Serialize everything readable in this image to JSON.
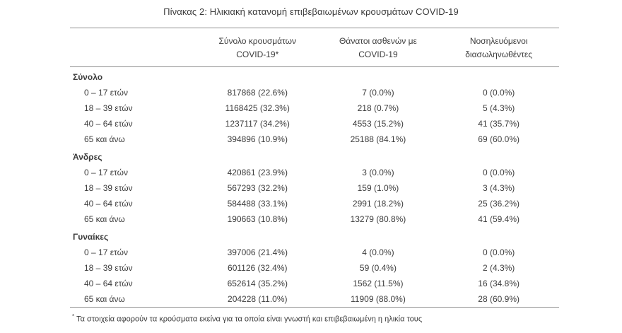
{
  "title": "Πίνακας 2: Ηλικιακή κατανομή επιβεβαιωμένων κρουσμάτων COVID-19",
  "table": {
    "columns": [
      {
        "text": "Σύνολο κρουσμάτων\nCOVID-19*"
      },
      {
        "text": "Θάνατοι ασθενών με\nCOVID-19"
      },
      {
        "text": "Νοσηλευόμενοι\nδιασωληνωθέντες"
      }
    ],
    "sections": [
      {
        "label": "Σύνολο",
        "rows": [
          {
            "label": "0 – 17 ετών",
            "values": [
              "817868 (22.6%)",
              "7 (0.0%)",
              "0 (0.0%)"
            ]
          },
          {
            "label": "18 – 39 ετών",
            "values": [
              "1168425 (32.3%)",
              "218 (0.7%)",
              "5 (4.3%)"
            ]
          },
          {
            "label": "40 – 64 ετών",
            "values": [
              "1237117 (34.2%)",
              "4553 (15.2%)",
              "41 (35.7%)"
            ]
          },
          {
            "label": "65 και άνω",
            "values": [
              "394896 (10.9%)",
              "25188 (84.1%)",
              "69 (60.0%)"
            ]
          }
        ]
      },
      {
        "label": "Άνδρες",
        "rows": [
          {
            "label": "0 – 17 ετών",
            "values": [
              "420861 (23.9%)",
              "3 (0.0%)",
              "0 (0.0%)"
            ]
          },
          {
            "label": "18 – 39 ετών",
            "values": [
              "567293 (32.2%)",
              "159 (1.0%)",
              "3 (4.3%)"
            ]
          },
          {
            "label": "40 – 64 ετών",
            "values": [
              "584488 (33.1%)",
              "2991 (18.2%)",
              "25 (36.2%)"
            ]
          },
          {
            "label": "65 και άνω",
            "values": [
              "190663 (10.8%)",
              "13279 (80.8%)",
              "41 (59.4%)"
            ]
          }
        ]
      },
      {
        "label": "Γυναίκες",
        "rows": [
          {
            "label": "0 – 17 ετών",
            "values": [
              "397006 (21.4%)",
              "4 (0.0%)",
              "0 (0.0%)"
            ]
          },
          {
            "label": "18 – 39 ετών",
            "values": [
              "601126 (32.4%)",
              "59 (0.4%)",
              "2 (4.3%)"
            ]
          },
          {
            "label": "40 – 64 ετών",
            "values": [
              "652614 (35.2%)",
              "1562 (11.5%)",
              "16 (34.8%)"
            ]
          },
          {
            "label": "65 και άνω",
            "values": [
              "204228 (11.0%)",
              "11909 (88.0%)",
              "28 (60.9%)"
            ]
          }
        ]
      }
    ],
    "footnote_marker": "*",
    "footnote": "Τα στοιχεία αφορούν τα κρούσματα εκείνα για τα οποία είναι γνωστή και επιβεβαιωμένη η ηλικία τους"
  },
  "colors": {
    "text": "#3c3c3c",
    "rule": "#8f8f8f",
    "background": "#ffffff"
  }
}
